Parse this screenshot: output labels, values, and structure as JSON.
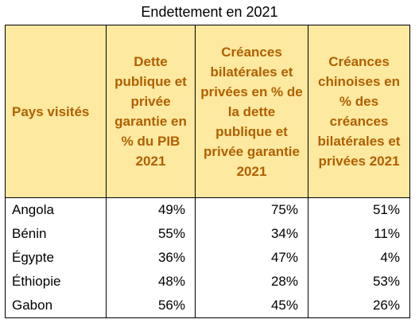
{
  "title": "Endettement en 2021",
  "columns": [
    "Pays visités",
    "Dette publique et privée garantie en % du PIB 2021",
    "Créances bilatérales et privées en % de la dette publique et privée garantie 2021",
    "Créances chinoises en % des créances bilatérales et privées 2021"
  ],
  "rows": [
    {
      "country": "Angola",
      "debt_gdp": "49%",
      "bilateral_private": "75%",
      "chinese": "51%"
    },
    {
      "country": "Bénin",
      "debt_gdp": "55%",
      "bilateral_private": "34%",
      "chinese": "11%"
    },
    {
      "country": "Égypte",
      "debt_gdp": "36%",
      "bilateral_private": "47%",
      "chinese": "4%"
    },
    {
      "country": "Éthiopie",
      "debt_gdp": "48%",
      "bilateral_private": "28%",
      "chinese": "53%"
    },
    {
      "country": "Gabon",
      "debt_gdp": "56%",
      "bilateral_private": "45%",
      "chinese": "26%"
    }
  ],
  "colors": {
    "header_bg": "#fde9a0",
    "header_text": "#b06000"
  }
}
